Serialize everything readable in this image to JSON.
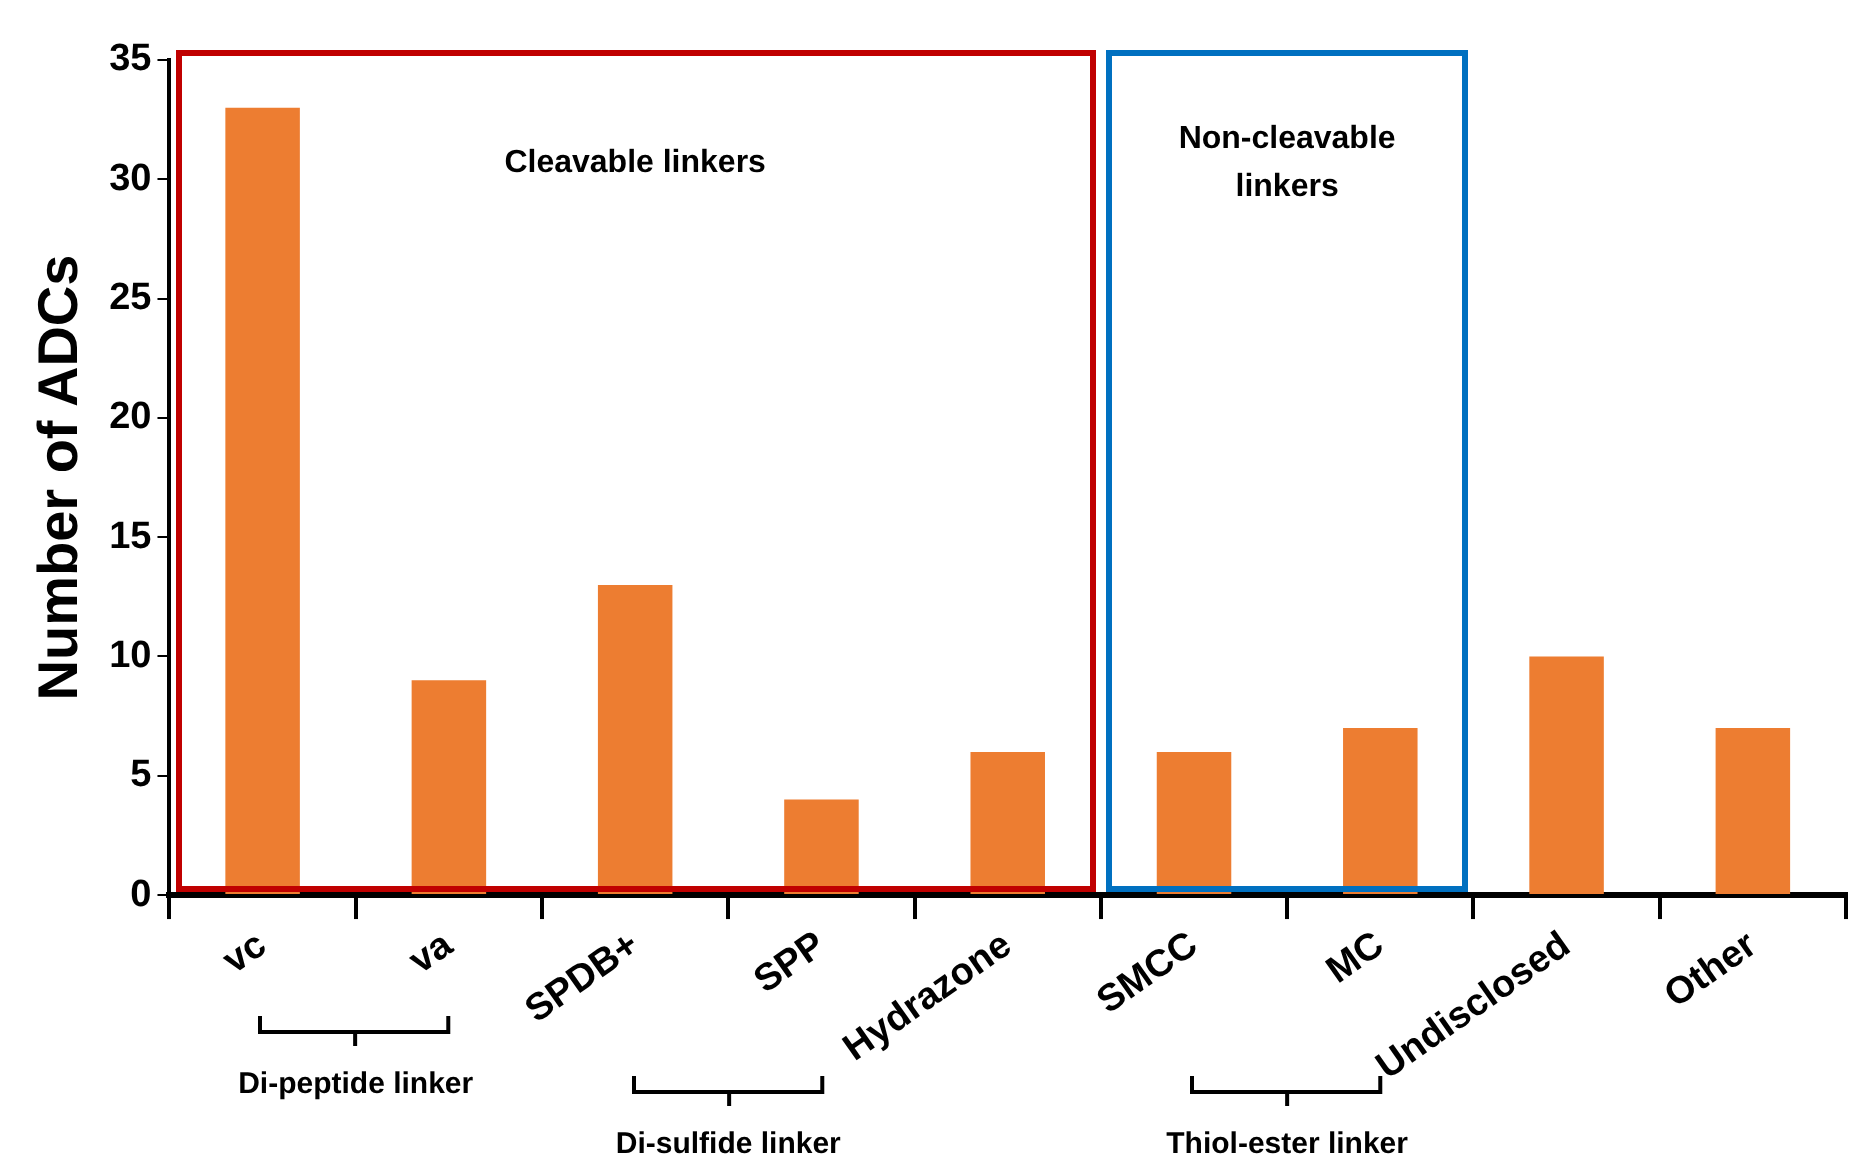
{
  "chart_data": {
    "type": "bar",
    "ylabel": "Number of ADCs",
    "categories": [
      "vc",
      "va",
      "SPDB+",
      "SPP",
      "Hydrazone",
      "SMCC",
      "MC",
      "Undisclosed",
      "Other"
    ],
    "values": [
      33,
      9,
      13,
      4,
      6,
      6,
      7,
      10,
      7
    ],
    "color": "#ed7d31",
    "ylim": [
      0,
      35
    ],
    "yticks": [
      0,
      5,
      10,
      15,
      20,
      25,
      30,
      35
    ],
    "grid": false,
    "legend": false,
    "annotations": [
      "Cleavable linkers",
      "Non-cleavable linkers",
      "Di-peptide linker",
      "Di-sulfide linker",
      "Thiol-ester linker"
    ]
  }
}
